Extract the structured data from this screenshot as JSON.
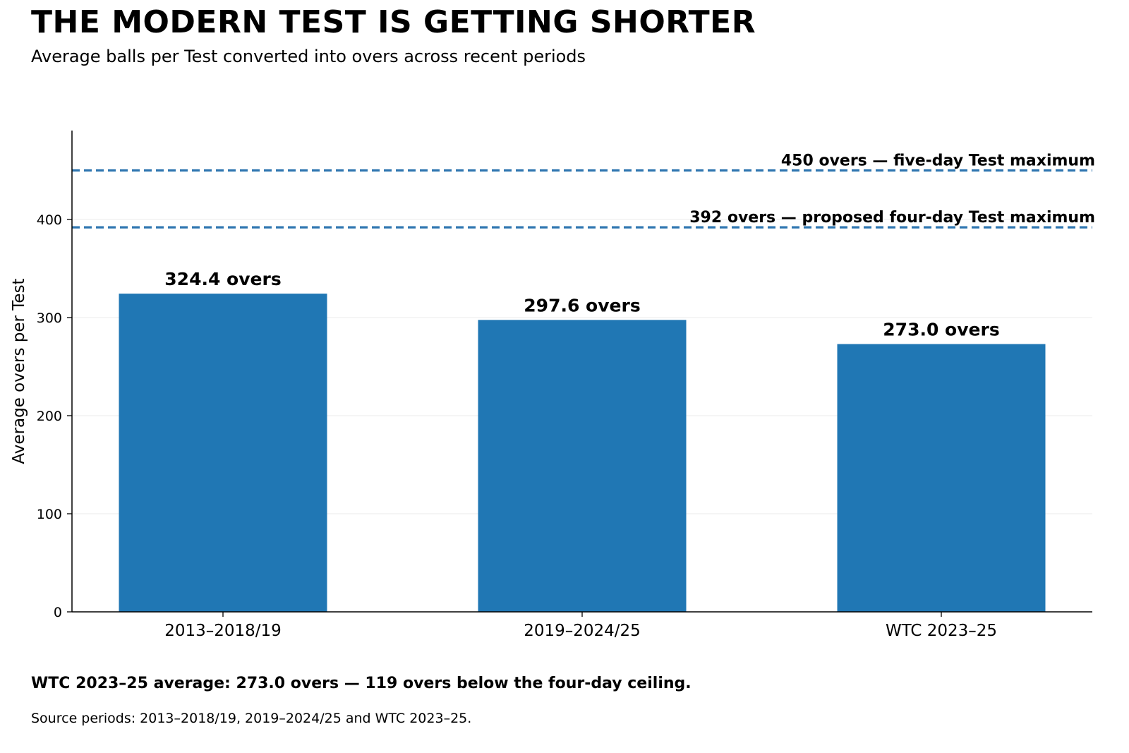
{
  "title": "THE MODERN TEST IS GETTING SHORTER",
  "subtitle": "Average balls per Test converted into overs across recent periods",
  "summary": "WTC 2023–25 average: 273.0 overs — 119 overs below the four-day ceiling.",
  "source": "Source periods: 2013–2018/19, 2019–2024/25 and WTC 2023–25.",
  "colors": {
    "bar": "#2077b4",
    "reference_line": "#2f76b0",
    "grid": "#ebebeb",
    "axis": "#000000"
  },
  "chart_data": {
    "type": "bar",
    "categories": [
      "2013–2018/19",
      "2019–2024/25",
      "WTC 2023–25"
    ],
    "values": [
      324.4,
      297.6,
      273.0
    ],
    "value_labels": [
      "324.4 overs",
      "297.6 overs",
      "273.0 overs"
    ],
    "ylabel": "Average overs per Test",
    "xlabel": "",
    "ylim": [
      0,
      490
    ],
    "yticks": [
      0,
      100,
      200,
      300,
      400
    ],
    "grid": "horizontal",
    "reference_lines": [
      {
        "value": 450,
        "label": "450 overs — five-day Test maximum",
        "style": "dashed"
      },
      {
        "value": 392,
        "label": "392 overs — proposed four-day Test maximum",
        "style": "dashed"
      }
    ]
  }
}
